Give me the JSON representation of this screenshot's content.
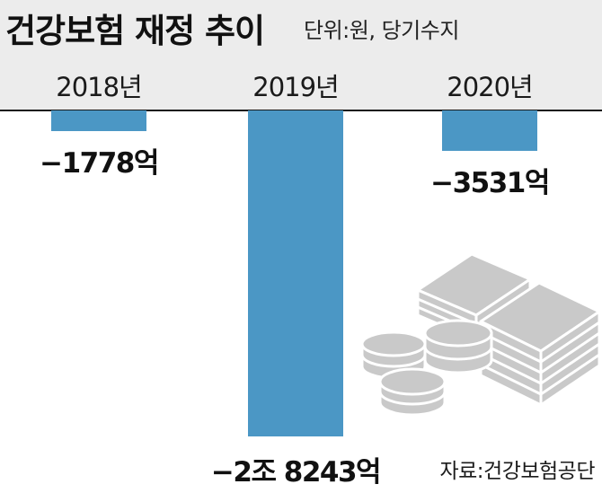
{
  "header": {
    "title": "건강보험 재정 추이",
    "unit": "단위:원, 당기수지"
  },
  "source": "자료:건강보험공단",
  "chart_data": {
    "type": "bar",
    "categories": [
      "2018년",
      "2019년",
      "2020년"
    ],
    "values": [
      -1778,
      -28243,
      -3531
    ],
    "value_labels": [
      "−1778억",
      "−2조 8243억",
      "−3531억"
    ],
    "value_unit": "억원",
    "ylim": [
      -28243,
      0
    ],
    "bar_color": "#4b97c5",
    "grid": false,
    "legend": "none"
  },
  "illustration": {
    "icon": "money-stack-icon",
    "color": "#c9c9c9"
  }
}
